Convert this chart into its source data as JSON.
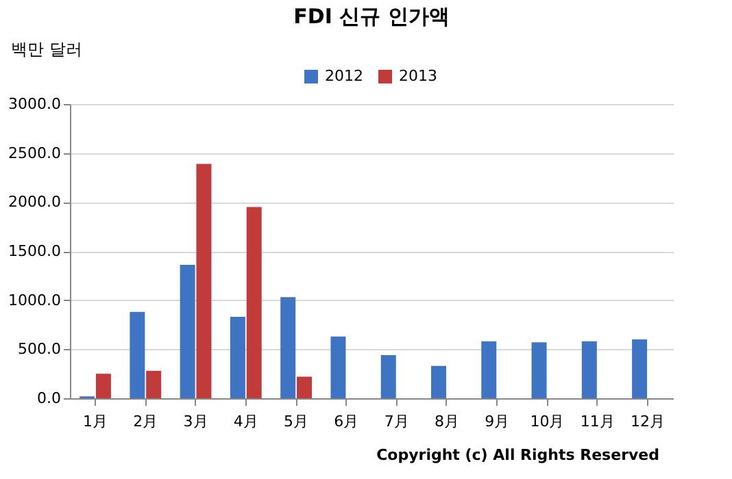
{
  "chart_data": {
    "type": "bar",
    "title": "FDI 신규 인가액",
    "ylabel": "백만 달러",
    "categories": [
      "1月",
      "2月",
      "3月",
      "4月",
      "5月",
      "6月",
      "7月",
      "8月",
      "9月",
      "10月",
      "11月",
      "12月"
    ],
    "series": [
      {
        "name": "2012",
        "color": "#3f74c4",
        "values": [
          20,
          880,
          1360,
          830,
          1030,
          630,
          440,
          330,
          580,
          570,
          580,
          600
        ]
      },
      {
        "name": "2013",
        "color": "#c23b3b",
        "values": [
          250,
          280,
          2390,
          1950,
          220,
          null,
          null,
          null,
          null,
          null,
          null,
          null
        ]
      }
    ],
    "ylim": [
      0,
      3000
    ],
    "yticks": [
      {
        "value": 0,
        "label": "0.0"
      },
      {
        "value": 500,
        "label": "500.0"
      },
      {
        "value": 1000,
        "label": "1000.0"
      },
      {
        "value": 1500,
        "label": "1500.0"
      },
      {
        "value": 2000,
        "label": "2000.0"
      },
      {
        "value": 2500,
        "label": "2500.0"
      },
      {
        "value": 3000,
        "label": "3000.0"
      }
    ],
    "grid": "y",
    "legend": "top",
    "annotations": [
      "Copyright (c) All Rights Reserved"
    ]
  }
}
